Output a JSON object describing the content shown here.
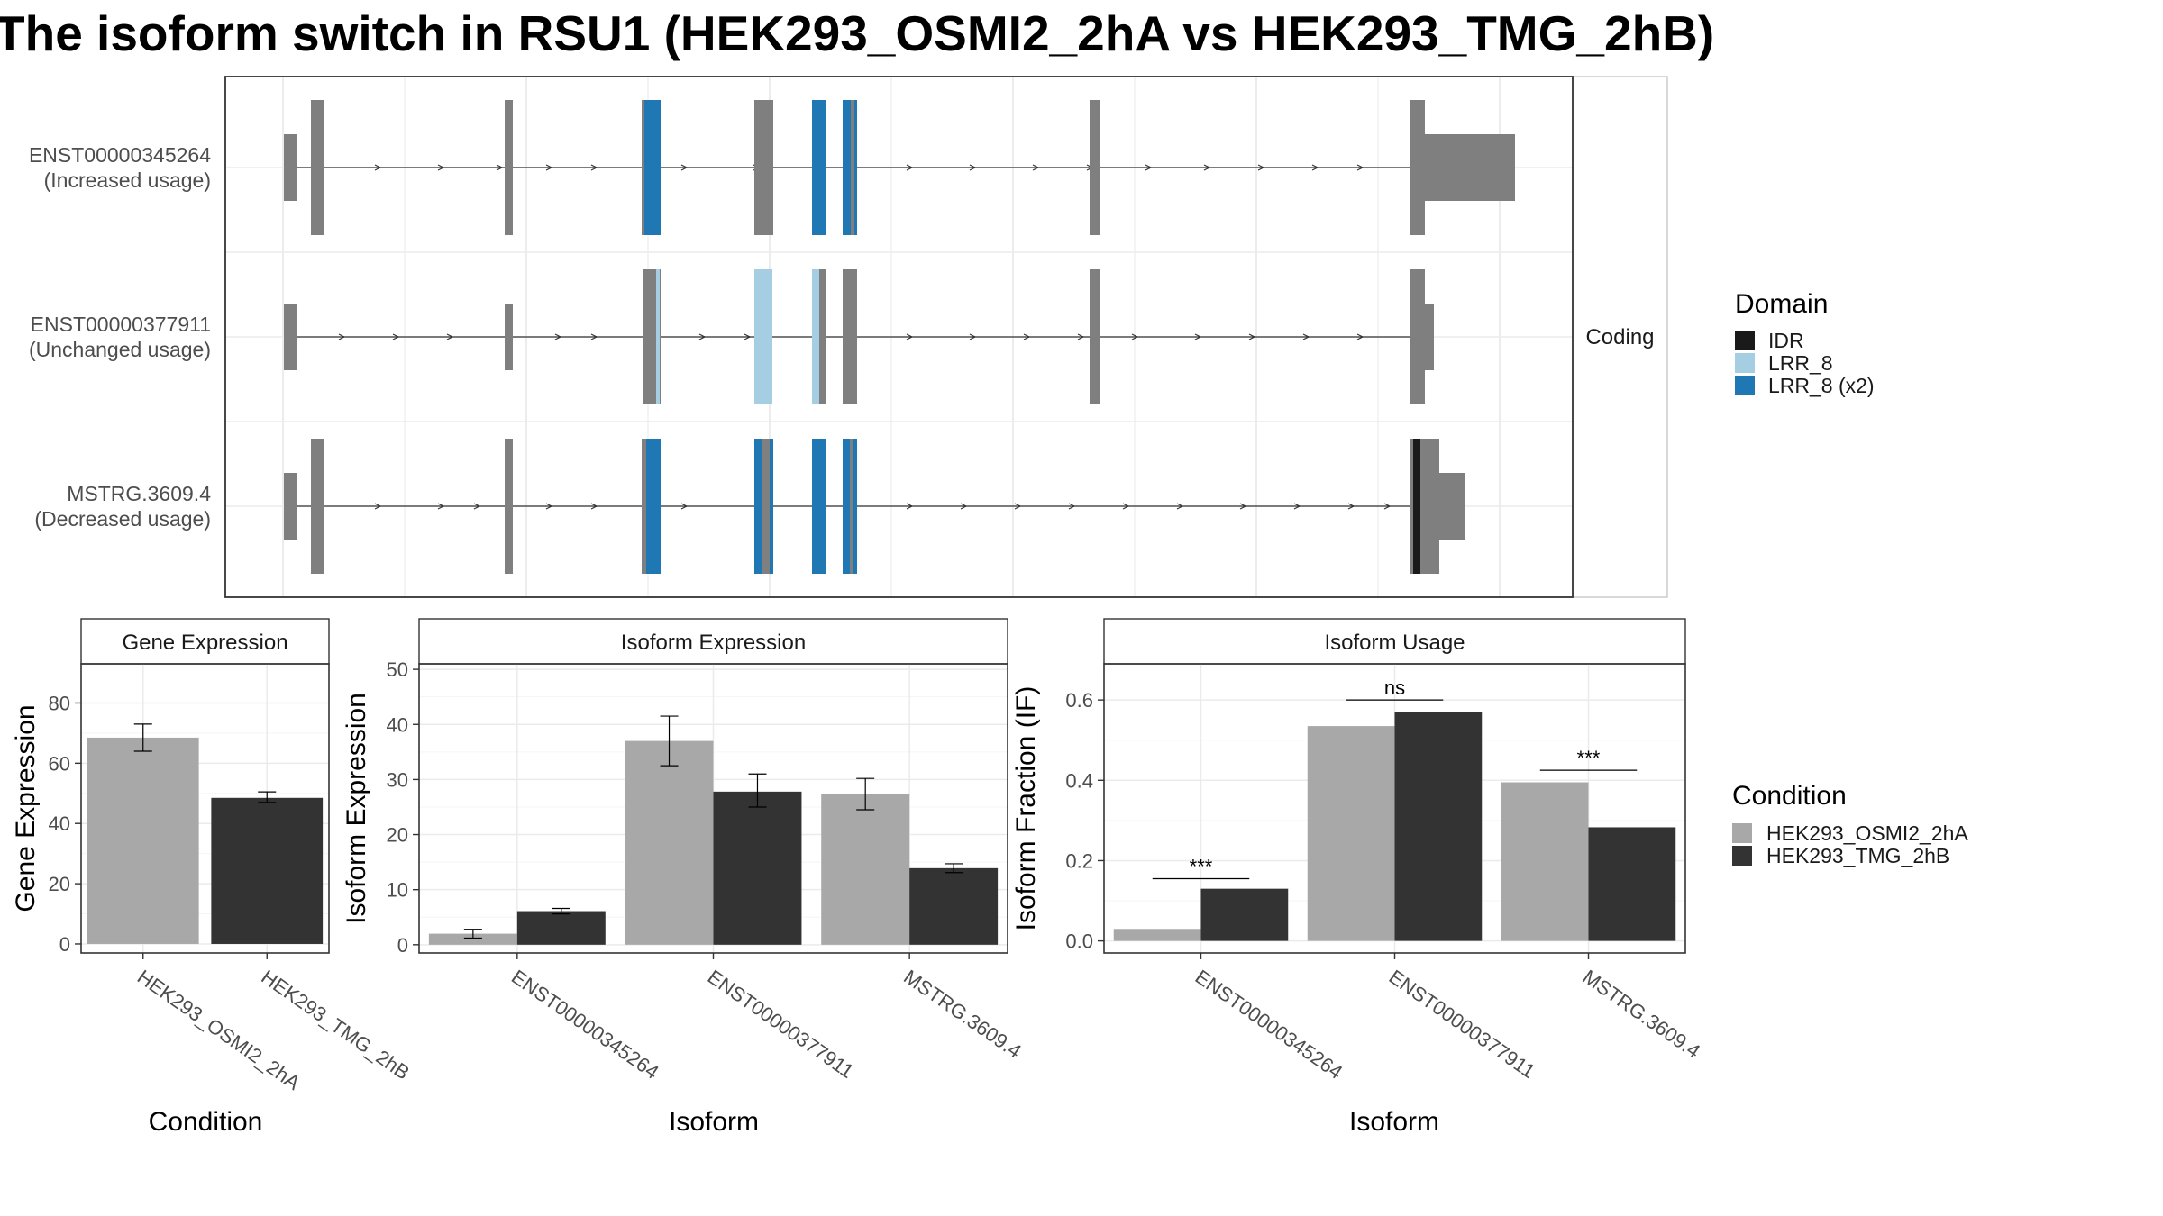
{
  "title": "The isoform switch in RSU1 (HEK293_OSMI2_2hA vs HEK293_TMG_2hB)",
  "structure": {
    "facet_label": "Coding",
    "isoforms": [
      {
        "id": "ENST00000345264",
        "usage": "(Increased usage)"
      },
      {
        "id": "ENST00000377911",
        "usage": "(Unchanged usage)"
      },
      {
        "id": "MSTRG.3609.4",
        "usage": "(Decreased usage)"
      }
    ],
    "domain_legend": {
      "title": "Domain",
      "items": [
        {
          "label": "IDR",
          "color": "#1a1a1a"
        },
        {
          "label": "LRR_8",
          "color": "#a6cee3"
        },
        {
          "label": "LRR_8 (x2)",
          "color": "#1f78b4"
        }
      ]
    }
  },
  "condition_legend": {
    "title": "Condition",
    "items": [
      {
        "label": "HEK293_OSMI2_2hA",
        "color": "#a8a8a8"
      },
      {
        "label": "HEK293_TMG_2hB",
        "color": "#333333"
      }
    ]
  },
  "chart_data": [
    {
      "type": "bar",
      "title": "Gene Expression",
      "xlabel": "Condition",
      "ylabel": "Gene Expression",
      "categories": [
        "HEK293_OSMI2_2hA",
        "HEK293_TMG_2hB"
      ],
      "values": [
        68.5,
        48.5
      ],
      "errors": [
        [
          64,
          73
        ],
        [
          47,
          50.5
        ]
      ],
      "ylim": [
        -3,
        93
      ],
      "yticks": [
        0,
        20,
        40,
        60,
        80
      ]
    },
    {
      "type": "bar",
      "title": "Isoform Expression",
      "xlabel": "Isoform",
      "ylabel": "Isoform Expression",
      "categories": [
        "ENST00000345264",
        "ENST00000377911",
        "MSTRG.3609.4"
      ],
      "series": [
        {
          "values": [
            2,
            37,
            27.3
          ],
          "errors": [
            [
              1.2,
              2.8
            ],
            [
              32.5,
              41.5
            ],
            [
              24.5,
              30.2
            ]
          ]
        },
        {
          "values": [
            6.1,
            27.8,
            13.9
          ],
          "errors": [
            [
              5.6,
              6.6
            ],
            [
              25,
              31
            ],
            [
              13.1,
              14.7
            ]
          ]
        }
      ],
      "ylim": [
        -1.5,
        51
      ],
      "yticks": [
        0,
        10,
        20,
        30,
        40,
        50
      ]
    },
    {
      "type": "bar",
      "title": "Isoform Usage",
      "xlabel": "Isoform",
      "ylabel": "Isoform Fraction (IF)",
      "categories": [
        "ENST00000345264",
        "ENST00000377911",
        "MSTRG.3609.4"
      ],
      "series": [
        {
          "values": [
            0.03,
            0.535,
            0.395
          ]
        },
        {
          "values": [
            0.13,
            0.57,
            0.283
          ]
        }
      ],
      "significance": [
        "***",
        "ns",
        "***"
      ],
      "ylim": [
        -0.03,
        0.69
      ],
      "yticks": [
        0.0,
        0.2,
        0.4,
        0.6
      ]
    }
  ]
}
